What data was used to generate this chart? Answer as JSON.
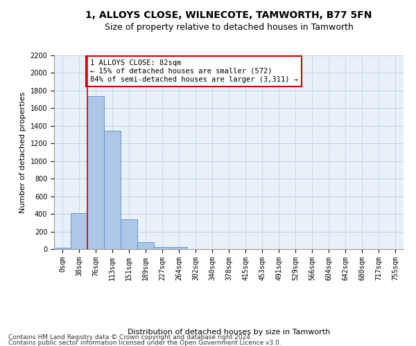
{
  "title": "1, ALLOYS CLOSE, WILNECOTE, TAMWORTH, B77 5FN",
  "subtitle": "Size of property relative to detached houses in Tamworth",
  "xlabel": "Distribution of detached houses by size in Tamworth",
  "ylabel": "Number of detached properties",
  "bar_labels": [
    "0sqm",
    "38sqm",
    "76sqm",
    "113sqm",
    "151sqm",
    "189sqm",
    "227sqm",
    "264sqm",
    "302sqm",
    "340sqm",
    "378sqm",
    "415sqm",
    "453sqm",
    "491sqm",
    "529sqm",
    "566sqm",
    "604sqm",
    "642sqm",
    "680sqm",
    "717sqm",
    "755sqm"
  ],
  "bar_values": [
    15,
    410,
    1740,
    1340,
    340,
    75,
    25,
    20,
    0,
    0,
    0,
    0,
    0,
    0,
    0,
    0,
    0,
    0,
    0,
    0,
    0
  ],
  "bar_color": "#aec6e8",
  "bar_edge_color": "#5a8fc0",
  "vline_x": 2,
  "vline_color": "#cc0000",
  "annotation_text": "1 ALLOYS CLOSE: 82sqm\n← 15% of detached houses are smaller (572)\n84% of semi-detached houses are larger (3,311) →",
  "annotation_box_color": "#ffffff",
  "annotation_box_edge": "#cc0000",
  "ylim": [
    0,
    2200
  ],
  "yticks": [
    0,
    200,
    400,
    600,
    800,
    1000,
    1200,
    1400,
    1600,
    1800,
    2000,
    2200
  ],
  "grid_color": "#c0d0e8",
  "bg_color": "#e8f0f8",
  "footer_line1": "Contains HM Land Registry data © Crown copyright and database right 2024.",
  "footer_line2": "Contains public sector information licensed under the Open Government Licence v3.0.",
  "title_fontsize": 10,
  "subtitle_fontsize": 9,
  "axis_label_fontsize": 8,
  "tick_fontsize": 7,
  "annotation_fontsize": 7.5,
  "footer_fontsize": 6.5
}
